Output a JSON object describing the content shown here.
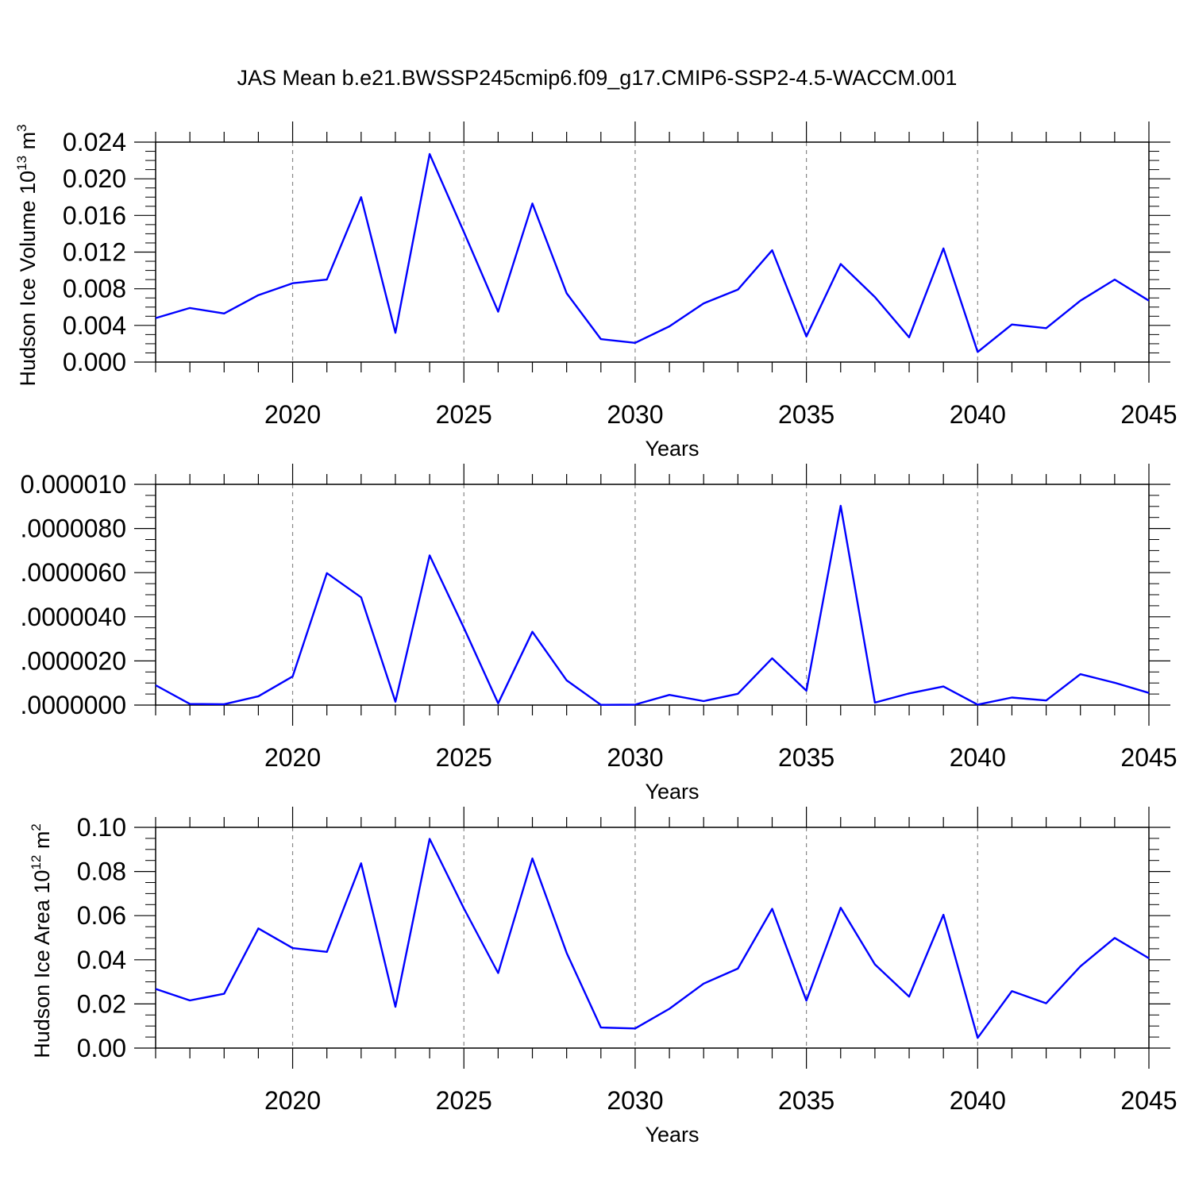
{
  "chart_data": [
    {
      "type": "line",
      "title": "JAS Mean b.e21.BWSSP245cmip6.f09_g17.CMIP6-SSP2-4.5-WACCM.001",
      "ylabel": "Hudson Ice Volume 10",
      "ylabel_exp": "13",
      "ylabel_unit": "m",
      "ylabel_unit_exp": "3",
      "xlabel": "Years",
      "xlim": [
        2016,
        2045
      ],
      "ylim": [
        0,
        0.024
      ],
      "yticks": [
        "0.000",
        "0.004",
        "0.008",
        "0.012",
        "0.016",
        "0.020",
        "0.024"
      ],
      "xticks": [
        "2020",
        "2025",
        "2030",
        "2035",
        "2040",
        "2045"
      ],
      "x": [
        2016,
        2017,
        2018,
        2019,
        2020,
        2021,
        2022,
        2023,
        2024,
        2025,
        2026,
        2027,
        2028,
        2029,
        2030,
        2031,
        2032,
        2033,
        2034,
        2035,
        2036,
        2037,
        2038,
        2039,
        2040,
        2041,
        2042,
        2043,
        2044,
        2045
      ],
      "values": [
        0.0048,
        0.0059,
        0.0053,
        0.0073,
        0.0086,
        0.009,
        0.018,
        0.0032,
        0.0227,
        0.0142,
        0.0055,
        0.0173,
        0.0075,
        0.0025,
        0.0021,
        0.0039,
        0.0064,
        0.0079,
        0.0122,
        0.0028,
        0.0107,
        0.0071,
        0.0027,
        0.0124,
        0.0011,
        0.0041,
        0.0037,
        0.0067,
        0.009,
        0.0067
      ],
      "line_color": "#0000ff",
      "grid": "dashed vertical at major x ticks"
    },
    {
      "type": "line",
      "title": "",
      "ylabel": "",
      "xlabel": "Years",
      "xlim": [
        2016,
        2045
      ],
      "ylim": [
        0,
        1e-05
      ],
      "yticks": [
        ".0000000",
        ".0000020",
        ".0000040",
        ".0000060",
        ".0000080",
        "0.000010"
      ],
      "xticks": [
        "2020",
        "2025",
        "2030",
        "2035",
        "2040",
        "2045"
      ],
      "x": [
        2016,
        2017,
        2018,
        2019,
        2020,
        2021,
        2022,
        2023,
        2024,
        2025,
        2026,
        2027,
        2028,
        2029,
        2030,
        2031,
        2032,
        2033,
        2034,
        2035,
        2036,
        2037,
        2038,
        2039,
        2040,
        2041,
        2042,
        2043,
        2044,
        2045
      ],
      "values": [
        9e-07,
        5e-08,
        4e-08,
        4e-07,
        1.3e-06,
        5.98e-06,
        4.88e-06,
        1.5e-07,
        6.78e-06,
        3.5e-06,
        8e-08,
        3.32e-06,
        1.12e-06,
        1e-08,
        2e-08,
        4.6e-07,
        1.8e-07,
        5.1e-07,
        2.12e-06,
        6.5e-07,
        9.03e-06,
        1.1e-07,
        5.3e-07,
        8.4e-07,
        2e-08,
        3.4e-07,
        2.1e-07,
        1.4e-06,
        1.01e-06,
        5.5e-07
      ],
      "line_color": "#0000ff",
      "grid": "dashed vertical at major x ticks"
    },
    {
      "type": "line",
      "title": "",
      "ylabel": "Hudson Ice Area 10",
      "ylabel_exp": "12",
      "ylabel_unit": "m",
      "ylabel_unit_exp": "2",
      "xlabel": "Years",
      "xlim": [
        2016,
        2045
      ],
      "ylim": [
        0,
        0.1
      ],
      "yticks": [
        "0.00",
        "0.02",
        "0.04",
        "0.06",
        "0.08",
        "0.10"
      ],
      "xticks": [
        "2020",
        "2025",
        "2030",
        "2035",
        "2040",
        "2045"
      ],
      "x": [
        2016,
        2017,
        2018,
        2019,
        2020,
        2021,
        2022,
        2023,
        2024,
        2025,
        2026,
        2027,
        2028,
        2029,
        2030,
        2031,
        2032,
        2033,
        2034,
        2035,
        2036,
        2037,
        2038,
        2039,
        2040,
        2041,
        2042,
        2043,
        2044,
        2045
      ],
      "values": [
        0.0268,
        0.0216,
        0.0246,
        0.0542,
        0.0453,
        0.0436,
        0.0837,
        0.0187,
        0.0948,
        0.0633,
        0.034,
        0.0859,
        0.0431,
        0.0093,
        0.0089,
        0.0178,
        0.0292,
        0.036,
        0.0631,
        0.0215,
        0.0636,
        0.0379,
        0.0233,
        0.0604,
        0.0046,
        0.0258,
        0.0203,
        0.037,
        0.0499,
        0.0407
      ],
      "line_color": "#0000ff",
      "grid": "dashed vertical at major x ticks"
    }
  ]
}
